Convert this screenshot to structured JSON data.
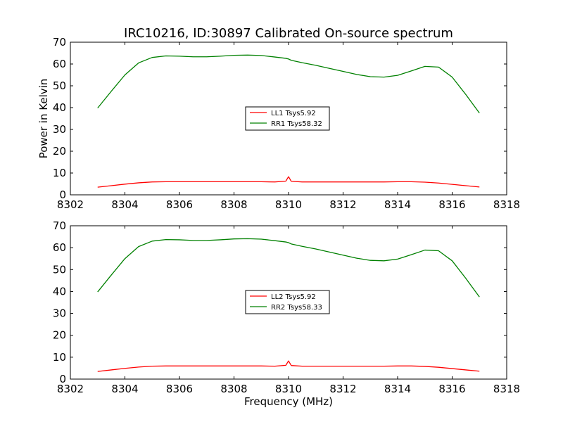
{
  "figure": {
    "title": "IRC10216, ID:30897 Calibrated On-source spectrum"
  },
  "chart_data": [
    {
      "type": "line",
      "title": "IRC10216, ID:30897 Calibrated On-source spectrum",
      "xlabel": "",
      "ylabel": "Power in Kelvin",
      "xlim": [
        8302,
        8318
      ],
      "ylim": [
        0,
        70
      ],
      "xticks": [
        "8302",
        "8304",
        "8306",
        "8308",
        "8310",
        "8312",
        "8314",
        "8316",
        "8318"
      ],
      "yticks": [
        "0",
        "10",
        "20",
        "30",
        "40",
        "50",
        "60",
        "70"
      ],
      "grid": false,
      "legend_position": "center",
      "x": [
        8303.0,
        8303.5,
        8304.0,
        8304.5,
        8305.0,
        8305.5,
        8306.0,
        8306.5,
        8307.0,
        8307.5,
        8308.0,
        8308.5,
        8309.0,
        8309.5,
        8309.9,
        8310.0,
        8310.1,
        8310.5,
        8311.0,
        8311.5,
        8312.0,
        8312.5,
        8313.0,
        8313.5,
        8314.0,
        8314.5,
        8315.0,
        8315.5,
        8316.0,
        8316.5,
        8317.0
      ],
      "series": [
        {
          "name": "LL1 Tsys5.92",
          "color": "#ff0000",
          "values": [
            3.5,
            4.2,
            4.9,
            5.5,
            5.9,
            6.0,
            6.0,
            6.0,
            6.0,
            6.0,
            6.0,
            6.0,
            6.0,
            5.9,
            6.3,
            8.3,
            6.2,
            5.9,
            5.9,
            5.9,
            5.9,
            5.9,
            5.9,
            5.9,
            6.0,
            6.0,
            5.8,
            5.4,
            4.8,
            4.2,
            3.6
          ]
        },
        {
          "name": "RR1 Tsys58.32",
          "color": "#008000",
          "values": [
            39.8,
            47.5,
            55.0,
            60.5,
            63.0,
            63.7,
            63.6,
            63.3,
            63.3,
            63.6,
            64.0,
            64.1,
            63.9,
            63.2,
            62.6,
            62.3,
            61.7,
            60.6,
            59.4,
            58.0,
            56.6,
            55.2,
            54.2,
            54.0,
            54.8,
            56.8,
            58.9,
            58.6,
            54.0,
            46.0,
            37.5
          ]
        }
      ]
    },
    {
      "type": "line",
      "title": "",
      "xlabel": "Frequency (MHz)",
      "ylabel": "",
      "xlim": [
        8302,
        8318
      ],
      "ylim": [
        0,
        70
      ],
      "xticks": [
        "8302",
        "8304",
        "8306",
        "8308",
        "8310",
        "8312",
        "8314",
        "8316",
        "8318"
      ],
      "yticks": [
        "0",
        "10",
        "20",
        "30",
        "40",
        "50",
        "60",
        "70"
      ],
      "grid": false,
      "legend_position": "center",
      "x": [
        8303.0,
        8303.5,
        8304.0,
        8304.5,
        8305.0,
        8305.5,
        8306.0,
        8306.5,
        8307.0,
        8307.5,
        8308.0,
        8308.5,
        8309.0,
        8309.5,
        8309.9,
        8310.0,
        8310.1,
        8310.5,
        8311.0,
        8311.5,
        8312.0,
        8312.5,
        8313.0,
        8313.5,
        8314.0,
        8314.5,
        8315.0,
        8315.5,
        8316.0,
        8316.5,
        8317.0
      ],
      "series": [
        {
          "name": "LL2 Tsys5.92",
          "color": "#ff0000",
          "values": [
            3.5,
            4.2,
            4.9,
            5.5,
            5.9,
            6.0,
            6.0,
            6.0,
            6.0,
            6.0,
            6.0,
            6.0,
            6.0,
            5.9,
            6.3,
            8.3,
            6.2,
            5.9,
            5.9,
            5.9,
            5.9,
            5.9,
            5.9,
            5.9,
            6.0,
            6.0,
            5.8,
            5.4,
            4.8,
            4.2,
            3.6
          ]
        },
        {
          "name": "RR2 Tsys58.33",
          "color": "#008000",
          "values": [
            39.8,
            47.5,
            55.0,
            60.5,
            63.0,
            63.7,
            63.6,
            63.3,
            63.3,
            63.6,
            64.0,
            64.1,
            63.9,
            63.2,
            62.6,
            62.3,
            61.7,
            60.6,
            59.4,
            58.0,
            56.6,
            55.2,
            54.2,
            54.0,
            54.8,
            56.8,
            58.9,
            58.6,
            54.0,
            46.0,
            37.5
          ]
        }
      ]
    }
  ]
}
